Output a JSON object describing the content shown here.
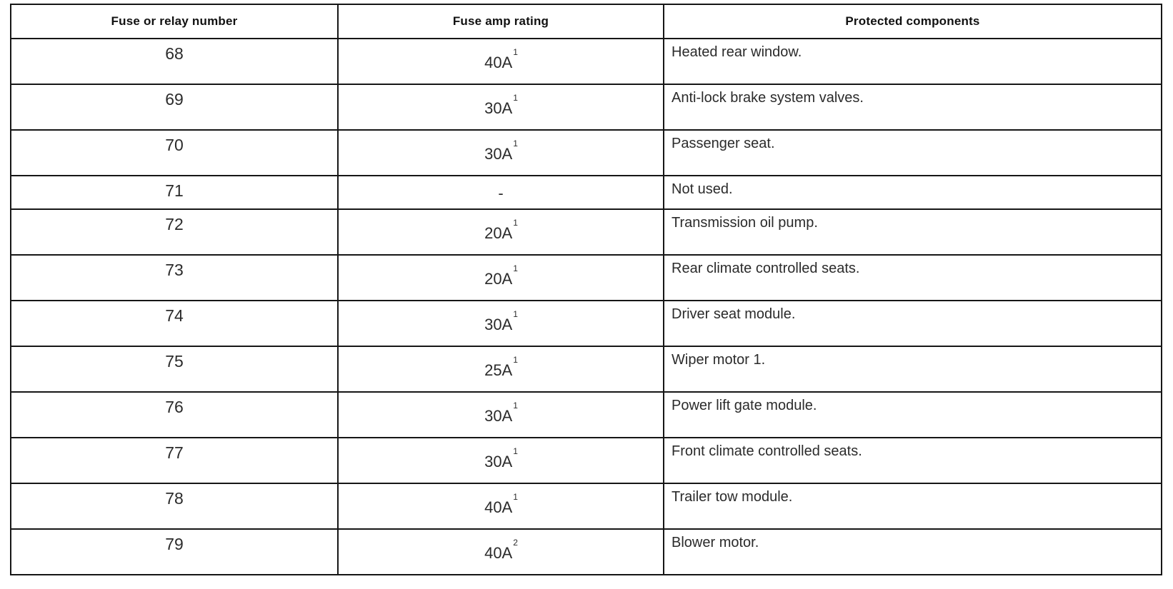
{
  "table": {
    "columns": [
      "Fuse or relay number",
      "Fuse amp rating",
      "Protected components"
    ],
    "rows": [
      {
        "number": "68",
        "amp": "40A",
        "sup": "1",
        "component": "Heated rear window."
      },
      {
        "number": "69",
        "amp": "30A",
        "sup": "1",
        "component": "Anti-lock brake system valves."
      },
      {
        "number": "70",
        "amp": "30A",
        "sup": "1",
        "component": "Passenger seat."
      },
      {
        "number": "71",
        "amp": "-",
        "sup": "",
        "component": "Not used."
      },
      {
        "number": "72",
        "amp": "20A",
        "sup": "1",
        "component": "Transmission oil pump."
      },
      {
        "number": "73",
        "amp": "20A",
        "sup": "1",
        "component": "Rear climate controlled seats."
      },
      {
        "number": "74",
        "amp": "30A",
        "sup": "1",
        "component": "Driver seat module."
      },
      {
        "number": "75",
        "amp": "25A",
        "sup": "1",
        "component": "Wiper motor 1."
      },
      {
        "number": "76",
        "amp": "30A",
        "sup": "1",
        "component": "Power lift gate module."
      },
      {
        "number": "77",
        "amp": "30A",
        "sup": "1",
        "component": "Front climate controlled seats."
      },
      {
        "number": "78",
        "amp": "40A",
        "sup": "1",
        "component": "Trailer tow module."
      },
      {
        "number": "79",
        "amp": "40A",
        "sup": "2",
        "component": "Blower motor."
      }
    ]
  }
}
